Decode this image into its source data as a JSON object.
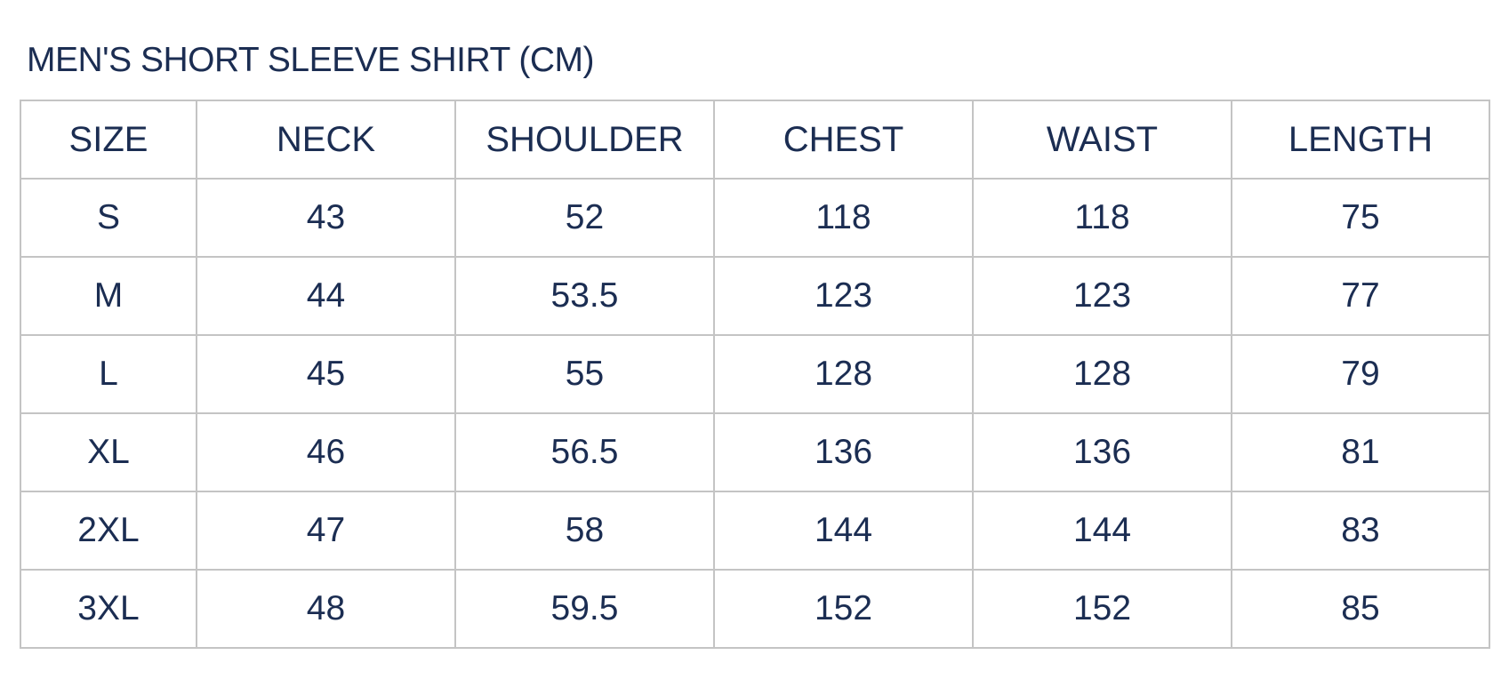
{
  "title": "MEN'S SHORT SLEEVE SHIRT (CM)",
  "colors": {
    "text": "#1b2d52",
    "border": "#c4c4c4"
  },
  "table": {
    "headers": [
      "SIZE",
      "NECK",
      "SHOULDER",
      "CHEST",
      "WAIST",
      "LENGTH"
    ],
    "rows": [
      [
        "S",
        "43",
        "52",
        "118",
        "118",
        "75"
      ],
      [
        "M",
        "44",
        "53.5",
        "123",
        "123",
        "77"
      ],
      [
        "L",
        "45",
        "55",
        "128",
        "128",
        "79"
      ],
      [
        "XL",
        "46",
        "56.5",
        "136",
        "136",
        "81"
      ],
      [
        "2XL",
        "47",
        "58",
        "144",
        "144",
        "83"
      ],
      [
        "3XL",
        "48",
        "59.5",
        "152",
        "152",
        "85"
      ]
    ]
  }
}
